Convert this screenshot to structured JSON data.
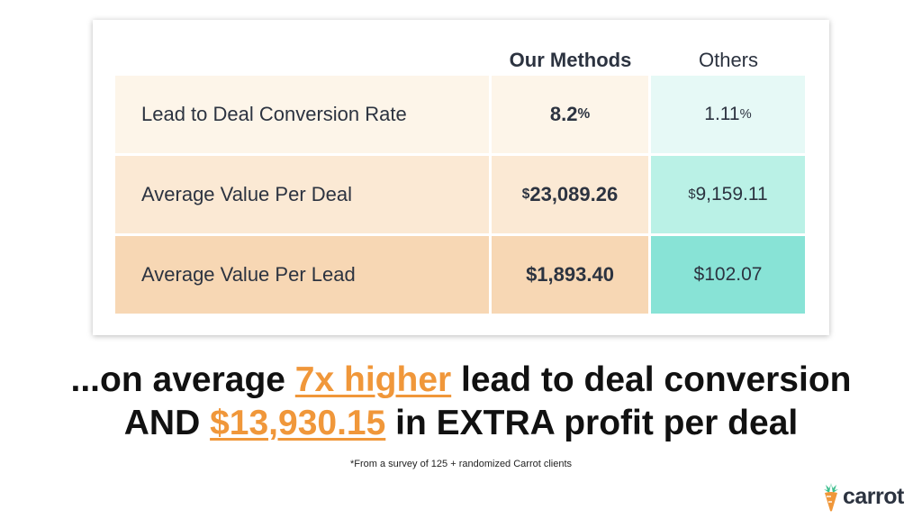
{
  "table": {
    "headers": {
      "ours": "Our Methods",
      "others": "Others"
    },
    "rows": [
      {
        "label": "Lead to Deal Conversion Rate",
        "ours": {
          "prefix": "",
          "value": "8.2",
          "suffix": "%"
        },
        "others": {
          "prefix": "",
          "value": "1.11",
          "suffix": "%"
        }
      },
      {
        "label": "Average Value Per Deal",
        "ours": {
          "prefix": "$",
          "value": "23,089.26",
          "suffix": ""
        },
        "others": {
          "prefix": "$",
          "value": "9,159.11",
          "suffix": ""
        }
      },
      {
        "label": "Average Value Per Lead",
        "ours": {
          "prefix": "",
          "value": "$1,893.40",
          "suffix": ""
        },
        "others": {
          "prefix": "",
          "value": "$102.07",
          "suffix": ""
        }
      }
    ]
  },
  "headline": {
    "line1_pre": "...on average ",
    "line1_highlight": "7x higher",
    "line1_post": " lead to deal conversion",
    "line2_pre": "AND ",
    "line2_highlight": "$13,930.15",
    "line2_post": " in EXTRA profit per deal"
  },
  "footnote": "*From a survey of 125 + randomized Carrot clients",
  "logo": {
    "text": "carrot",
    "icon": "carrot-icon"
  },
  "colors": {
    "accent": "#f0973a",
    "ours_row_1": "#fdf5e9",
    "ours_row_2": "#fbe9d4",
    "ours_row_3": "#f7d7b4",
    "others_row_1": "#e6f9f6",
    "others_row_2": "#baf1e6",
    "others_row_3": "#88e3d6"
  }
}
